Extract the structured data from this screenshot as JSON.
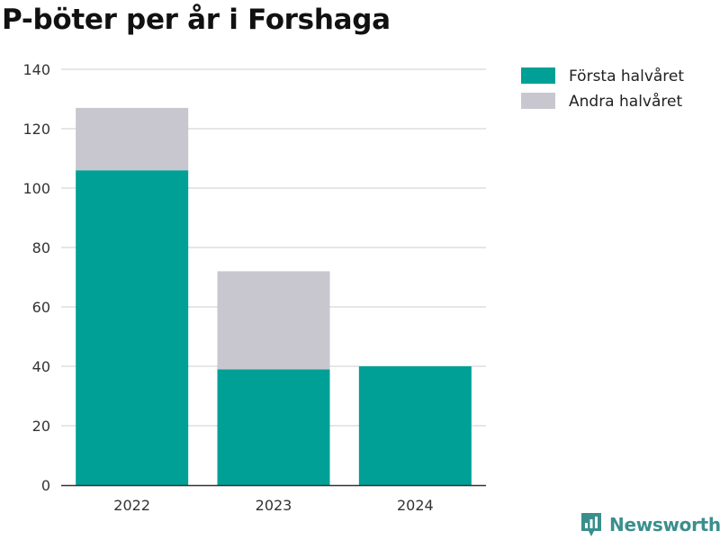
{
  "title": "P-böter per år i Forshaga",
  "colors": {
    "first_half": "#00a096",
    "second_half": "#c8c7cf",
    "grid": "#dddddd",
    "axis": "#333333",
    "brand": "#3a8f8c"
  },
  "brand": {
    "name": "Newsworthy",
    "icon": "chart-speech-bubble-icon"
  },
  "chart_data": {
    "type": "bar",
    "stacked": true,
    "categories": [
      "2022",
      "2023",
      "2024"
    ],
    "series": [
      {
        "name": "Första halvåret",
        "values": [
          106,
          39,
          40
        ]
      },
      {
        "name": "Andra halvåret",
        "values": [
          21,
          33,
          0
        ]
      }
    ],
    "ylim": [
      0,
      140
    ],
    "yticks": [
      0,
      20,
      40,
      60,
      80,
      100,
      120,
      140
    ],
    "grid": true,
    "legend_position": "top-right"
  }
}
